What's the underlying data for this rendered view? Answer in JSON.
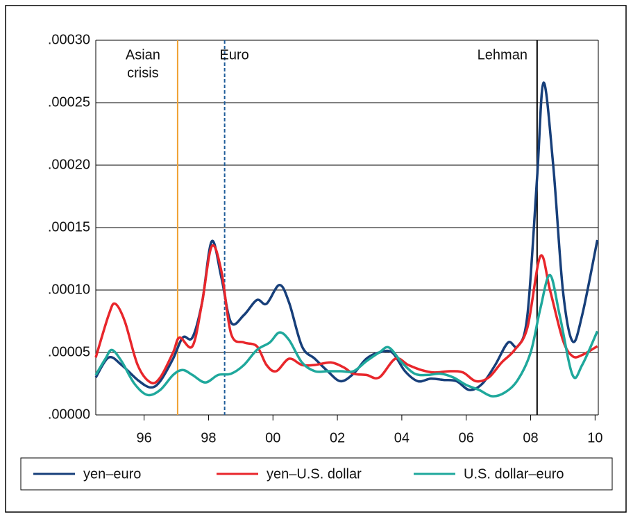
{
  "chart_data": {
    "type": "line",
    "xlim": [
      1995,
      2010.6
    ],
    "ylim": [
      0,
      0.0003
    ],
    "xticks": [
      {
        "value": 1996.5,
        "label": "96"
      },
      {
        "value": 1998.5,
        "label": "98"
      },
      {
        "value": 2000.5,
        "label": "00"
      },
      {
        "value": 2002.5,
        "label": "02"
      },
      {
        "value": 2004.5,
        "label": "04"
      },
      {
        "value": 2006.5,
        "label": "06"
      },
      {
        "value": 2008.5,
        "label": "08"
      },
      {
        "value": 2010.5,
        "label": "10"
      }
    ],
    "yticks": [
      {
        "value": 0,
        "label": ".00000"
      },
      {
        "value": 5e-05,
        "label": ".00005"
      },
      {
        "value": 0.0001,
        "label": ".00010"
      },
      {
        "value": 0.00015,
        "label": ".00015"
      },
      {
        "value": 0.0002,
        "label": ".00020"
      },
      {
        "value": 0.00025,
        "label": ".00025"
      },
      {
        "value": 0.0003,
        "label": ".00030"
      }
    ],
    "grid": true,
    "legend": "bottom",
    "annotations": [
      {
        "label": [
          "Asian",
          "crisis"
        ],
        "x": 1997.54,
        "color": "#f0a030",
        "style": "solid"
      },
      {
        "label": [
          "Euro"
        ],
        "x": 1999.0,
        "color": "#1f5c99",
        "style": "dashed"
      },
      {
        "label": [
          "Lehman"
        ],
        "x": 2008.7,
        "color": "#000000",
        "style": "solid"
      }
    ],
    "series": [
      {
        "name": "yen–euro",
        "color": "#173f7a",
        "x": [
          1995.0,
          1995.4,
          1995.8,
          1996.3,
          1996.7,
          1997.0,
          1997.4,
          1997.7,
          1998.0,
          1998.3,
          1998.6,
          1998.9,
          1999.2,
          1999.6,
          2000.0,
          2000.3,
          2000.7,
          2001.0,
          2001.4,
          2001.8,
          2002.2,
          2002.6,
          2003.0,
          2003.4,
          2003.8,
          2004.2,
          2004.6,
          2005.0,
          2005.4,
          2005.8,
          2006.2,
          2006.6,
          2007.0,
          2007.4,
          2007.8,
          2008.1,
          2008.4,
          2008.7,
          2008.9,
          2009.2,
          2009.5,
          2009.8,
          2010.1,
          2010.57
        ],
        "values": [
          3e-05,
          4.6e-05,
          4e-05,
          2.8e-05,
          2.2e-05,
          2.7e-05,
          4.5e-05,
          6.2e-05,
          6.2e-05,
          9e-05,
          0.000139,
          0.00011,
          7.4e-05,
          8e-05,
          9.2e-05,
          8.9e-05,
          0.000104,
          9e-05,
          5.5e-05,
          4.5e-05,
          3.5e-05,
          2.7e-05,
          3.3e-05,
          4.5e-05,
          5e-05,
          5e-05,
          3.5e-05,
          2.7e-05,
          2.9e-05,
          2.8e-05,
          2.7e-05,
          2e-05,
          2.5e-05,
          4e-05,
          5.8e-05,
          5.5e-05,
          8e-05,
          0.00019,
          0.000266,
          0.0002,
          0.0001,
          5.9e-05,
          8e-05,
          0.00014
        ]
      },
      {
        "name": "yen–U.S. dollar",
        "color": "#e8262b",
        "x": [
          1995.0,
          1995.4,
          1995.6,
          1995.9,
          1996.3,
          1996.7,
          1997.0,
          1997.4,
          1997.6,
          1998.0,
          1998.3,
          1998.6,
          1998.9,
          1999.2,
          1999.6,
          2000.0,
          2000.3,
          2000.6,
          2001.0,
          2001.4,
          2001.8,
          2002.3,
          2002.7,
          2003.0,
          2003.4,
          2003.8,
          2004.3,
          2004.7,
          2005.1,
          2005.5,
          2006.0,
          2006.4,
          2006.8,
          2007.2,
          2007.6,
          2008.0,
          2008.4,
          2008.8,
          2009.1,
          2009.5,
          2009.8,
          2010.1,
          2010.57
        ],
        "values": [
          4.6e-05,
          8e-05,
          8.9e-05,
          7.5e-05,
          4e-05,
          2.6e-05,
          3e-05,
          5e-05,
          6.2e-05,
          5.5e-05,
          9e-05,
          0.000135,
          0.000115,
          6.5e-05,
          5.8e-05,
          5.5e-05,
          4e-05,
          3.5e-05,
          4.5e-05,
          4e-05,
          4e-05,
          4.2e-05,
          3.8e-05,
          3.3e-05,
          3.2e-05,
          3e-05,
          4.5e-05,
          4e-05,
          3.6e-05,
          3.4e-05,
          3.5e-05,
          3.4e-05,
          2.7e-05,
          3e-05,
          4.2e-05,
          5.2e-05,
          7e-05,
          0.000127,
          0.0001,
          6e-05,
          4.7e-05,
          4.8e-05,
          5.5e-05
        ]
      },
      {
        "name": "U.S. dollar–euro",
        "color": "#1fa89c",
        "x": [
          1995.0,
          1995.3,
          1995.5,
          1995.8,
          1996.2,
          1996.6,
          1997.0,
          1997.4,
          1997.7,
          1998.0,
          1998.4,
          1998.8,
          1999.2,
          1999.6,
          2000.0,
          2000.4,
          2000.7,
          2001.0,
          2001.4,
          2001.8,
          2002.2,
          2002.6,
          2003.0,
          2003.4,
          2003.8,
          2004.1,
          2004.5,
          2004.9,
          2005.3,
          2005.7,
          2006.1,
          2006.5,
          2006.9,
          2007.3,
          2007.7,
          2008.1,
          2008.5,
          2008.8,
          2009.1,
          2009.4,
          2009.8,
          2010.1,
          2010.57
        ],
        "values": [
          3.2e-05,
          4.5e-05,
          5.2e-05,
          4.3e-05,
          2.5e-05,
          1.6e-05,
          2e-05,
          3.2e-05,
          3.6e-05,
          3.2e-05,
          2.6e-05,
          3.2e-05,
          3.3e-05,
          4e-05,
          5.2e-05,
          5.8e-05,
          6.6e-05,
          6e-05,
          4.2e-05,
          3.5e-05,
          3.5e-05,
          3.5e-05,
          3.5e-05,
          4.3e-05,
          5e-05,
          5.4e-05,
          4.2e-05,
          3.3e-05,
          3.2e-05,
          3.3e-05,
          3e-05,
          2.4e-05,
          2e-05,
          1.5e-05,
          1.8e-05,
          2.8e-05,
          5e-05,
          8.5e-05,
          0.000112,
          8e-05,
          3.2e-05,
          4e-05,
          6.7e-05
        ]
      }
    ]
  }
}
